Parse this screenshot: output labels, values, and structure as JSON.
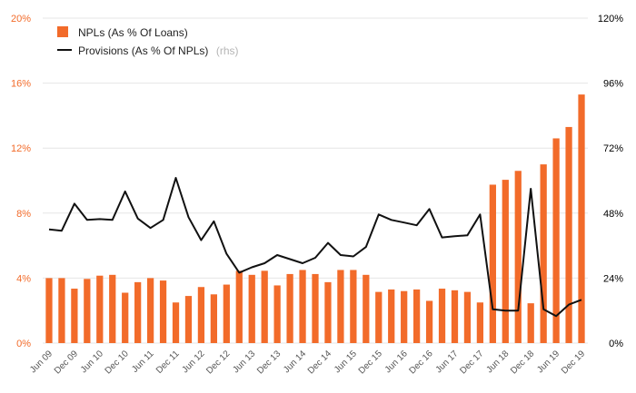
{
  "chart_data": {
    "type": "bar",
    "title": "",
    "xlabel": "",
    "ylabel": "",
    "ylim": [
      0,
      20
    ],
    "y2lim": [
      0,
      120
    ],
    "left_ticks": [
      "0%",
      "4%",
      "8%",
      "12%",
      "16%",
      "20%"
    ],
    "right_ticks": [
      "0%",
      "24%",
      "48%",
      "72%",
      "96%",
      "120%"
    ],
    "colors": {
      "bars": "#f26b2a",
      "line": "#111111",
      "left_axis": "#f26b2a",
      "right_axis": "#000000"
    },
    "legend": {
      "position": "top-left",
      "bar_label": "NPLs (As % Of Loans)",
      "line_label": "Provisions (As % Of NPLs)",
      "line_note": "(rhs)"
    },
    "categories": [
      "Jun 09",
      "Sep 09",
      "Dec 09",
      "Mar 10",
      "Jun 10",
      "Sep 10",
      "Dec 10",
      "Mar 11",
      "Jun 11",
      "Sep 11",
      "Dec 11",
      "Mar 12",
      "Jun 12",
      "Sep 12",
      "Dec 12",
      "Mar 13",
      "Jun 13",
      "Sep 13",
      "Dec 13",
      "Mar 14",
      "Jun 14",
      "Sep 14",
      "Dec 14",
      "Mar 15",
      "Jun 15",
      "Sep 15",
      "Dec 15",
      "Mar 16",
      "Jun 16",
      "Sep 16",
      "Dec 16",
      "Mar 17",
      "Jun 17",
      "Sep 17",
      "Dec 17",
      "Mar 18",
      "Jun 18",
      "Sep 18",
      "Dec 18",
      "Mar 19",
      "Jun 19",
      "Sep 19",
      "Dec 19"
    ],
    "x_tick_labels": [
      "Jun 09",
      "Dec 09",
      "Jun 10",
      "Dec 10",
      "Jun 11",
      "Dec 11",
      "Jun 12",
      "Dec 12",
      "Jun 13",
      "Dec 13",
      "Jun 14",
      "Dec 14",
      "Jun 15",
      "Dec 15",
      "Jun 16",
      "Dec 16",
      "Jun 17",
      "Dec 17",
      "Jun 18",
      "Dec 18",
      "Jun 19",
      "Dec 19"
    ],
    "series": [
      {
        "name": "NPLs (As % Of Loans)",
        "type": "bar",
        "axis": "left",
        "values": [
          4.0,
          4.0,
          3.35,
          3.95,
          4.15,
          4.2,
          3.1,
          3.75,
          4.0,
          3.85,
          2.5,
          2.9,
          3.45,
          3.0,
          3.6,
          4.45,
          4.2,
          4.45,
          3.55,
          4.25,
          4.5,
          4.25,
          3.75,
          4.5,
          4.5,
          4.2,
          3.15,
          3.3,
          3.2,
          3.3,
          2.6,
          3.35,
          3.25,
          3.15,
          2.5,
          9.75,
          10.05,
          10.6,
          2.45,
          11.0,
          12.6,
          13.3,
          15.3
        ]
      },
      {
        "name": "Provisions (As % Of NPLs)",
        "type": "line",
        "axis": "right",
        "values": [
          42,
          41.5,
          51.5,
          45.5,
          45.8,
          45.5,
          56,
          46,
          42.5,
          45.5,
          61,
          46.5,
          38,
          45,
          33,
          26,
          28,
          29.5,
          32.5,
          31,
          29.5,
          31.5,
          37,
          32.5,
          32,
          35.5,
          47.5,
          45.5,
          44.5,
          43.5,
          49.5,
          39,
          39.5,
          39.8,
          47.5,
          12.5,
          12,
          12,
          57,
          12.5,
          10,
          14.2,
          16
        ]
      }
    ]
  }
}
